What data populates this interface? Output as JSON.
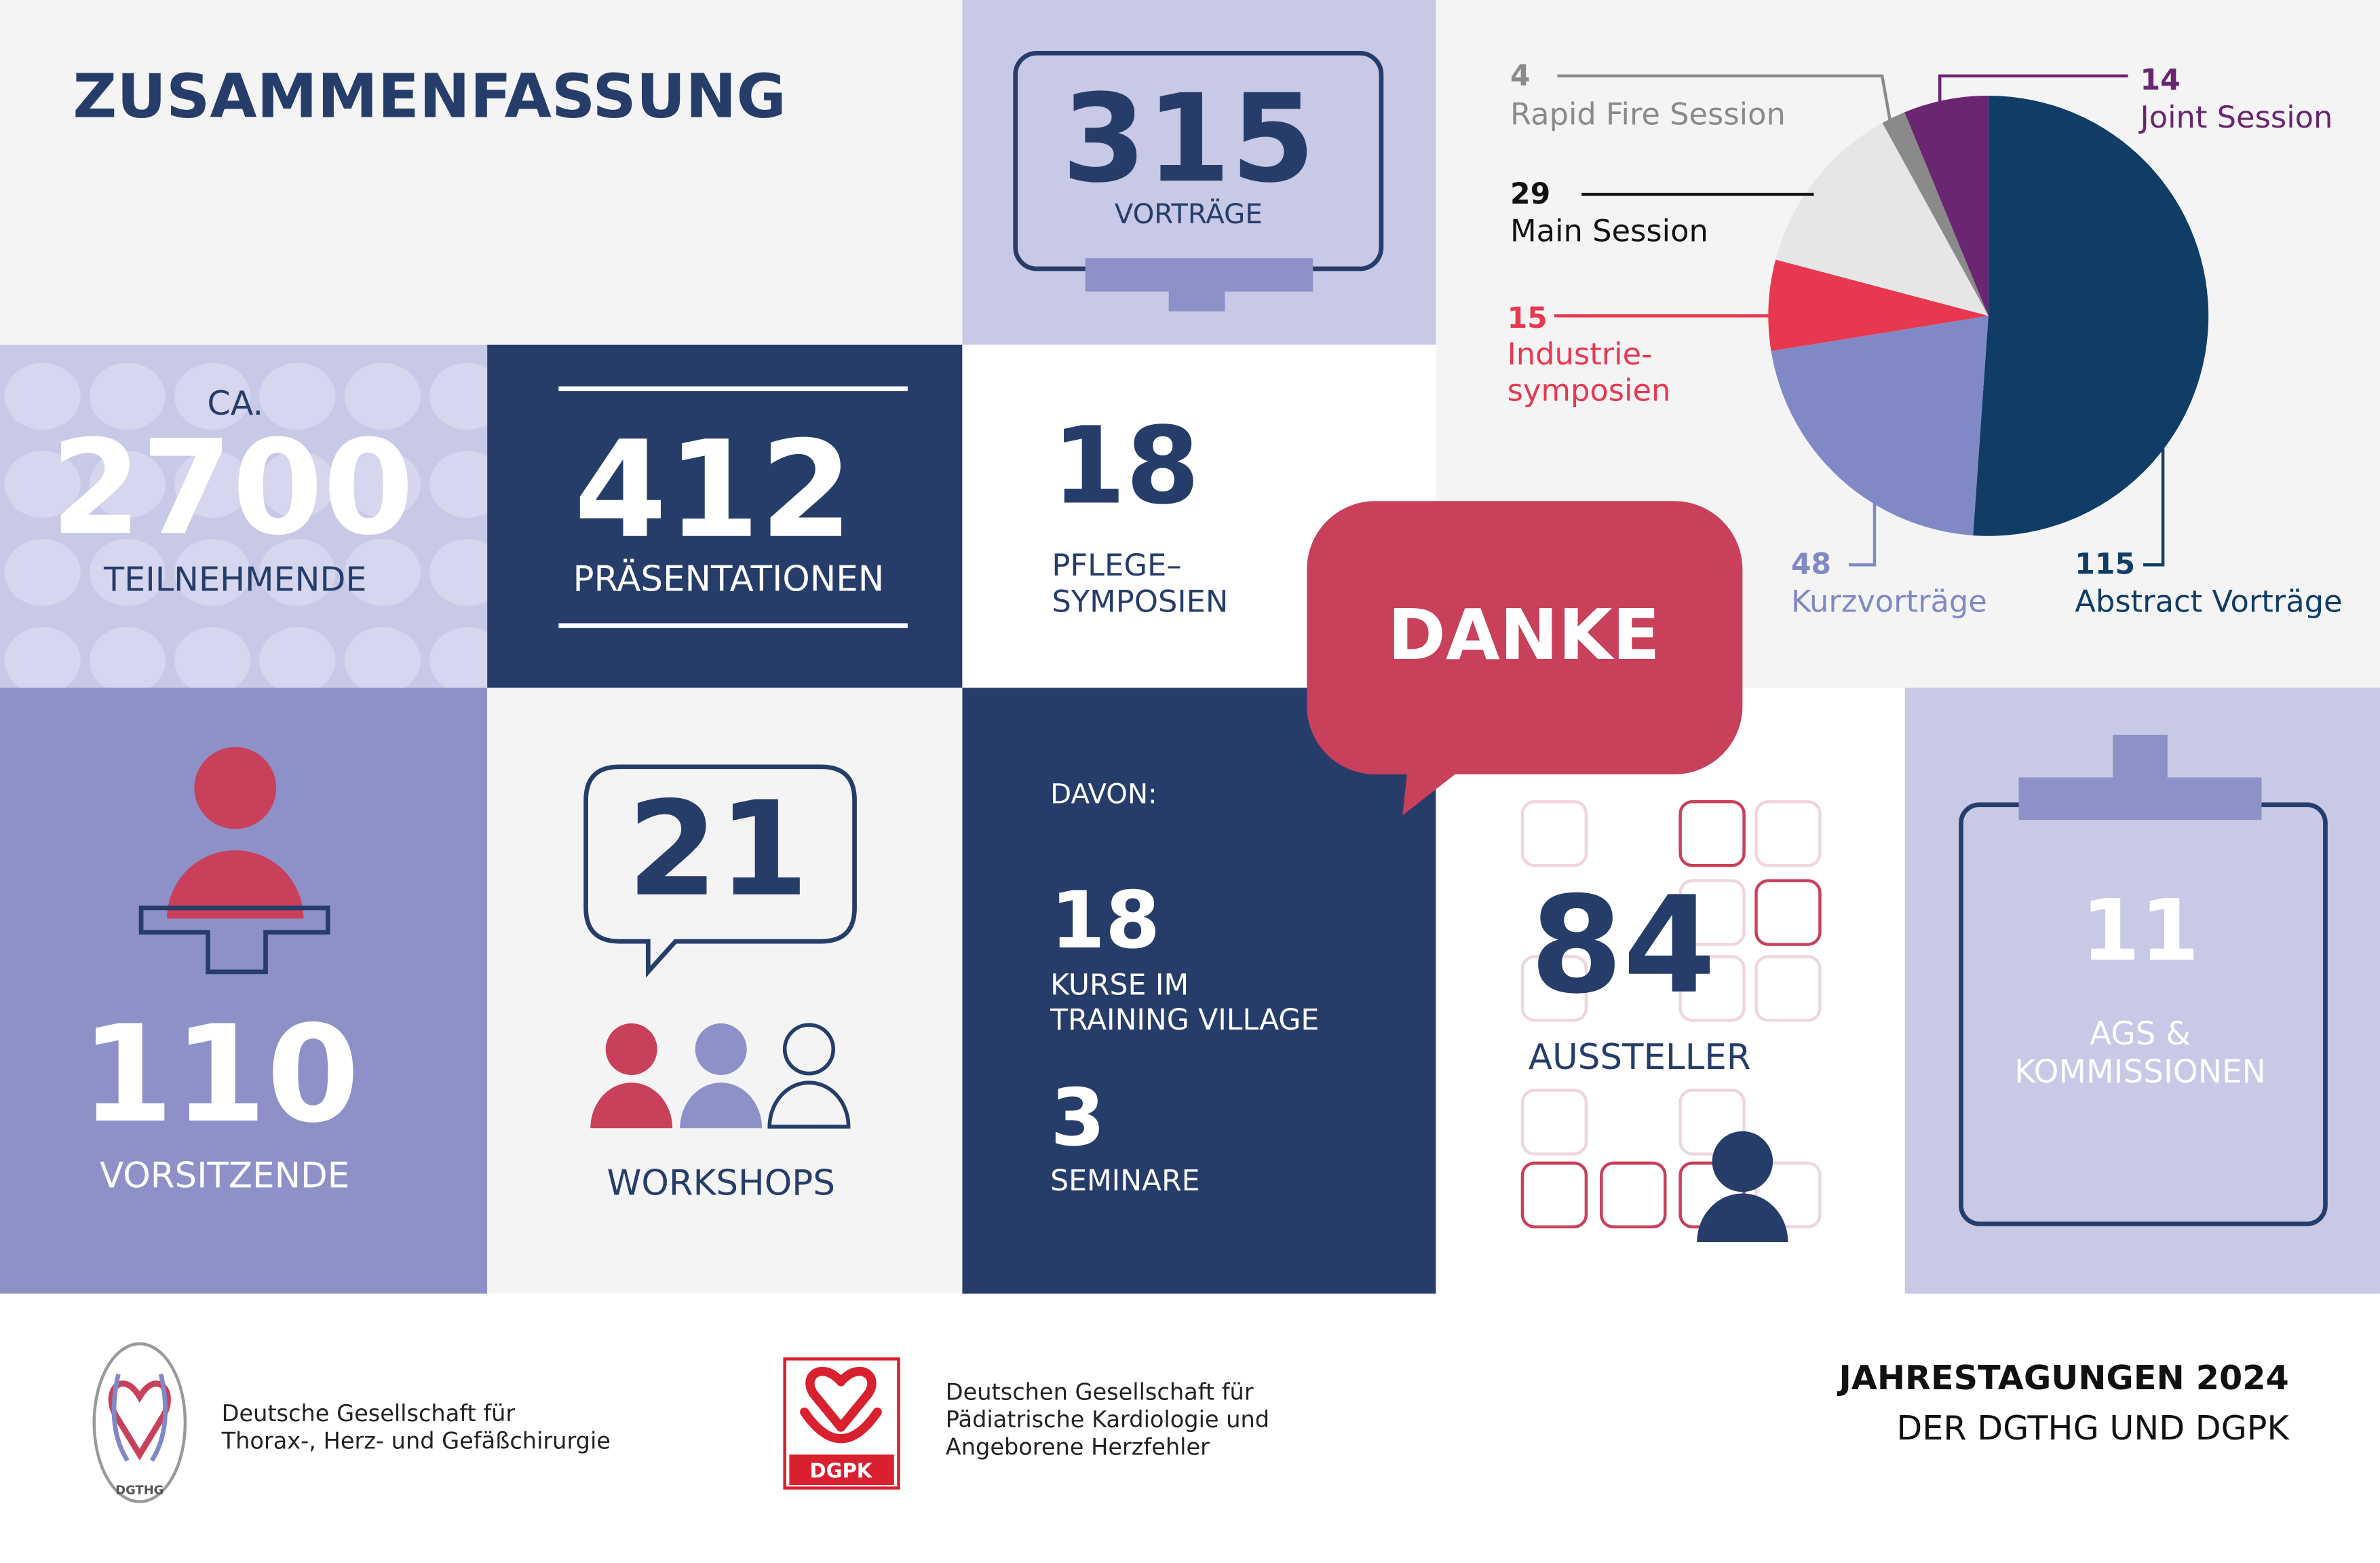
{
  "title": "ZUSAMMENFASSUNG",
  "tiles": {
    "vortraege": {
      "value": 315,
      "label": "VORTRÄGE"
    },
    "teilnehmende": {
      "prefix": "CA.",
      "value": 2700,
      "label": "TEILNEHMENDE"
    },
    "praesentationen": {
      "value": 412,
      "label": "PRÄSENTATIONEN"
    },
    "pflege": {
      "value": 18,
      "label": "PFLEGE–\nSYMPOSIEN"
    },
    "vorsitzende": {
      "value": 110,
      "label": "VORSITZENDE"
    },
    "workshops": {
      "value": 21,
      "label": "WORKSHOPS"
    },
    "davon": {
      "heading": "DAVON:",
      "kurse": {
        "value": 18,
        "label": "KURSE IM\nTRAINING VILLAGE"
      },
      "seminare": {
        "value": 3,
        "label": "SEMINARE"
      }
    },
    "aussteller": {
      "value": 84,
      "label": "AUSSTELLER"
    },
    "ags": {
      "value": 11,
      "label": "AGS &\nKOMMISSIONEN"
    },
    "danke": "DANKE"
  },
  "chart_data": {
    "type": "pie",
    "categories": [
      "Abstract Vorträge",
      "Kurzvorträge",
      "Industrie-\nsymposien",
      "Main Session",
      "Rapid Fire Session",
      "Joint Session"
    ],
    "values": [
      115,
      48,
      15,
      29,
      4,
      14
    ],
    "colors": [
      "#0f3d66",
      "#8089c6",
      "#e8384f",
      "#e6e6e6",
      "#8a8a8a",
      "#6a2670"
    ]
  },
  "footer": {
    "dgthg_logo": "DGTHG",
    "dgthg_name": "Deutsche Gesellschaft für\nThorax-, Herz- und Gefäßchirurgie",
    "dgpk_logo": "DGPK",
    "dgpk_name": "Deutschen Gesellschaft für\nPädiatrische Kardiologie und\nAngeborene Herzfehler",
    "event_line1": "JAHRESTAGUNGEN 2024",
    "event_line2": "DER DGTHG UND DGPK"
  }
}
